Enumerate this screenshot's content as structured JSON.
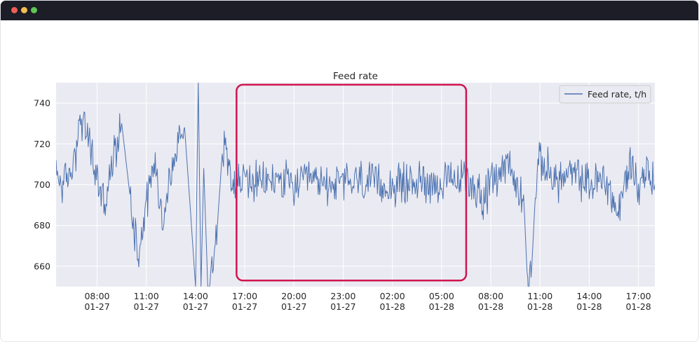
{
  "window": {
    "controls": {
      "close_color": "#ed5f56",
      "minimize_color": "#f5bd4f",
      "maximize_color": "#5fc455"
    }
  },
  "chart_data": {
    "type": "line",
    "title": "Feed rate",
    "xlabel": "",
    "ylabel": "",
    "x_range": [
      "2024-01-27T05:30",
      "2024-01-28T18:00"
    ],
    "ylim": [
      650,
      750
    ],
    "yticks": [
      660,
      680,
      700,
      720,
      740
    ],
    "xticks": [
      {
        "at": "2024-01-27T08:00",
        "time": "08:00",
        "date": "01-27"
      },
      {
        "at": "2024-01-27T11:00",
        "time": "11:00",
        "date": "01-27"
      },
      {
        "at": "2024-01-27T14:00",
        "time": "14:00",
        "date": "01-27"
      },
      {
        "at": "2024-01-27T17:00",
        "time": "17:00",
        "date": "01-27"
      },
      {
        "at": "2024-01-27T20:00",
        "time": "20:00",
        "date": "01-27"
      },
      {
        "at": "2024-01-27T23:00",
        "time": "23:00",
        "date": "01-27"
      },
      {
        "at": "2024-01-28T02:00",
        "time": "02:00",
        "date": "01-28"
      },
      {
        "at": "2024-01-28T05:00",
        "time": "05:00",
        "date": "01-28"
      },
      {
        "at": "2024-01-28T08:00",
        "time": "08:00",
        "date": "01-28"
      },
      {
        "at": "2024-01-28T11:00",
        "time": "11:00",
        "date": "01-28"
      },
      {
        "at": "2024-01-28T14:00",
        "time": "14:00",
        "date": "01-28"
      },
      {
        "at": "2024-01-28T17:00",
        "time": "17:00",
        "date": "01-28"
      }
    ],
    "grid": true,
    "legend_position": "top-right",
    "background_color": "#eaeaf2",
    "series": [
      {
        "name": "Feed rate, t/h",
        "color": "#4c72b0",
        "points": [
          [
            "2024-01-27T05:30",
            705
          ],
          [
            "2024-01-27T06:00",
            700
          ],
          [
            "2024-01-27T06:30",
            708
          ],
          [
            "2024-01-27T07:00",
            732
          ],
          [
            "2024-01-27T07:30",
            722
          ],
          [
            "2024-01-27T08:00",
            702
          ],
          [
            "2024-01-27T08:30",
            690
          ],
          [
            "2024-01-27T09:00",
            713
          ],
          [
            "2024-01-27T09:30",
            730
          ],
          [
            "2024-01-27T10:00",
            695
          ],
          [
            "2024-01-27T10:30",
            666
          ],
          [
            "2024-01-27T11:00",
            692
          ],
          [
            "2024-01-27T11:30",
            712
          ],
          [
            "2024-01-27T12:00",
            682
          ],
          [
            "2024-01-27T12:30",
            705
          ],
          [
            "2024-01-27T13:00",
            722
          ],
          [
            "2024-01-27T13:20",
            728
          ],
          [
            "2024-01-27T13:40",
            690
          ],
          [
            "2024-01-27T14:00",
            650
          ],
          [
            "2024-01-27T14:10",
            750
          ],
          [
            "2024-01-27T14:20",
            650
          ],
          [
            "2024-01-27T14:30",
            708
          ],
          [
            "2024-01-27T14:45",
            650
          ],
          [
            "2024-01-27T15:00",
            660
          ],
          [
            "2024-01-27T15:20",
            680
          ],
          [
            "2024-01-27T15:40",
            720
          ],
          [
            "2024-01-27T16:00",
            712
          ],
          [
            "2024-01-27T16:30",
            700
          ],
          [
            "2024-01-27T17:00",
            703
          ],
          [
            "2024-01-27T18:00",
            700
          ],
          [
            "2024-01-27T19:00",
            703
          ],
          [
            "2024-01-27T20:00",
            699
          ],
          [
            "2024-01-27T21:00",
            702
          ],
          [
            "2024-01-27T22:00",
            700
          ],
          [
            "2024-01-27T23:00",
            701
          ],
          [
            "2024-01-28T00:00",
            702
          ],
          [
            "2024-01-28T01:00",
            700
          ],
          [
            "2024-01-28T02:00",
            699
          ],
          [
            "2024-01-28T03:00",
            701
          ],
          [
            "2024-01-28T04:00",
            702
          ],
          [
            "2024-01-28T05:00",
            700
          ],
          [
            "2024-01-28T06:00",
            702
          ],
          [
            "2024-01-28T06:30",
            703
          ],
          [
            "2024-01-28T07:00",
            700
          ],
          [
            "2024-01-28T07:30",
            692
          ],
          [
            "2024-01-28T08:00",
            700
          ],
          [
            "2024-01-28T08:30",
            706
          ],
          [
            "2024-01-28T09:00",
            712
          ],
          [
            "2024-01-28T09:30",
            700
          ],
          [
            "2024-01-28T10:00",
            695
          ],
          [
            "2024-01-28T10:15",
            650
          ],
          [
            "2024-01-28T10:30",
            660
          ],
          [
            "2024-01-28T10:45",
            700
          ],
          [
            "2024-01-28T11:00",
            712
          ],
          [
            "2024-01-28T12:00",
            702
          ],
          [
            "2024-01-28T13:00",
            705
          ],
          [
            "2024-01-28T14:00",
            700
          ],
          [
            "2024-01-28T15:00",
            703
          ],
          [
            "2024-01-28T15:45",
            685
          ],
          [
            "2024-01-28T16:30",
            712
          ],
          [
            "2024-01-28T17:00",
            698
          ],
          [
            "2024-01-28T17:30",
            708
          ],
          [
            "2024-01-28T18:00",
            700
          ]
        ]
      }
    ],
    "highlight": {
      "x_start": "2024-01-27T16:30",
      "x_end": "2024-01-28T06:30",
      "y_low": 653,
      "y_high": 749,
      "color": "#d0144f"
    }
  }
}
